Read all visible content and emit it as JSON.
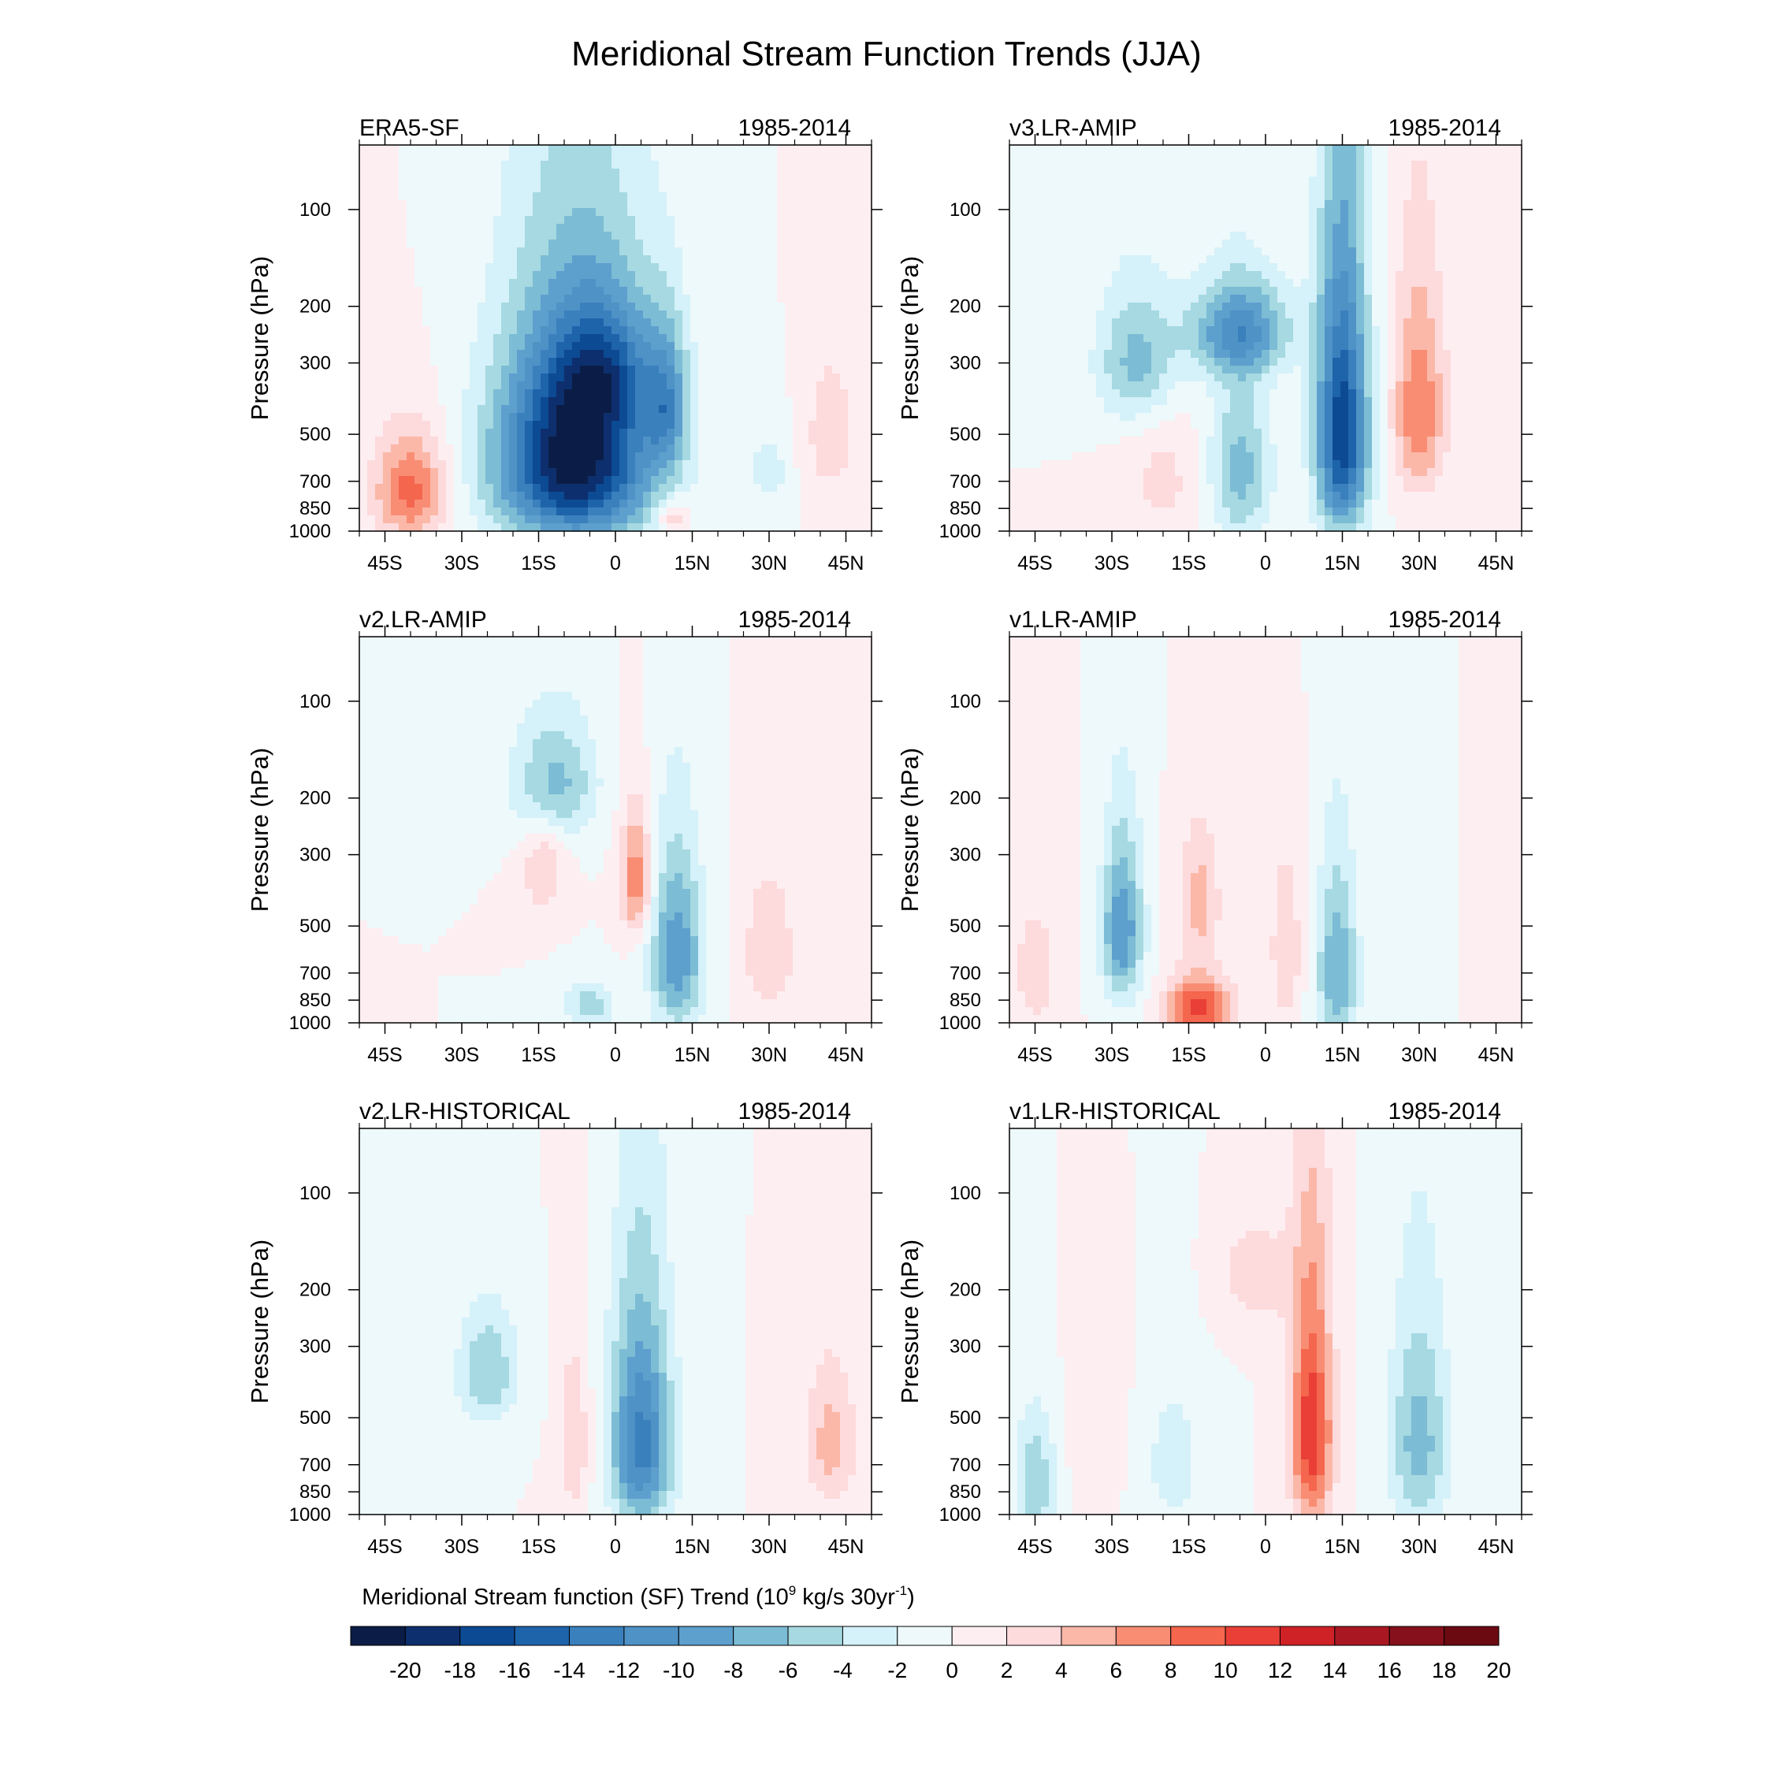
{
  "chart_data": {
    "type": "heatmap",
    "title": "Meridional Stream Function Trends (JJA)",
    "colorbar": {
      "title": "Meridional Stream function (SF) Trend (10",
      "title_exp1": "9",
      "title_mid": " kg/s 30yr",
      "title_exp2": "-1",
      "title_end": ")",
      "levels": [
        "-20",
        "-18",
        "-16",
        "-14",
        "-12",
        "-10",
        "-8",
        "-6",
        "-4",
        "-2",
        "0",
        "2",
        "4",
        "6",
        "8",
        "10",
        "12",
        "14",
        "16",
        "18",
        "20"
      ],
      "colors": [
        "#0b1d46",
        "#0d2f6e",
        "#0c4a93",
        "#1e64ab",
        "#3a80bd",
        "#4f92c6",
        "#5d9fcd",
        "#7cbcd5",
        "#a6d9e1",
        "#d5f1f9",
        "#eef9fb",
        "#fdeef1",
        "#fddadc",
        "#fbb8a8",
        "#f88d74",
        "#f4664e",
        "#e93f37",
        "#cf2227",
        "#a91822",
        "#86101b",
        "#6c0a12"
      ]
    },
    "x_ticks": [
      "45S",
      "30S",
      "15S",
      "0",
      "15N",
      "30N",
      "45N"
    ],
    "x_values": [
      -45,
      -30,
      -15,
      0,
      15,
      30,
      45
    ],
    "y_ticks": [
      "100",
      "200",
      "300",
      "500",
      "700",
      "850",
      "1000"
    ],
    "y_values": [
      100,
      200,
      300,
      500,
      700,
      850,
      1000
    ],
    "ylabel": "Pressure (hPa)",
    "panels": [
      {
        "name": "ERA5-SF",
        "period": "1985-2014",
        "features": [
          {
            "lat": -40,
            "p": 750,
            "wlat": 7,
            "wp": 280,
            "v": 9
          },
          {
            "lat": -8,
            "p": 600,
            "wlat": 15,
            "wp": 420,
            "v": -22
          },
          {
            "lat": -2,
            "p": 320,
            "wlat": 10,
            "wp": 150,
            "v": -8
          },
          {
            "lat": 10,
            "p": 420,
            "wlat": 4,
            "wp": 200,
            "v": -8
          },
          {
            "lat": 11,
            "p": 900,
            "wlat": 3,
            "wp": 120,
            "v": 5
          },
          {
            "lat": 30,
            "p": 650,
            "wlat": 4,
            "wp": 200,
            "v": -3
          },
          {
            "lat": 42,
            "p": 500,
            "wlat": 5,
            "wp": 250,
            "v": 3.5
          }
        ]
      },
      {
        "name": "v3.LR-AMIP",
        "period": "1985-2014",
        "features": [
          {
            "lat": -25,
            "p": 300,
            "wlat": 8,
            "wp": 150,
            "v": -7
          },
          {
            "lat": -5,
            "p": 240,
            "wlat": 10,
            "wp": 80,
            "v": -10
          },
          {
            "lat": -5,
            "p": 650,
            "wlat": 6,
            "wp": 380,
            "v": -7
          },
          {
            "lat": 15,
            "p": 500,
            "wlat": 5,
            "wp": 450,
            "v": -18
          },
          {
            "lat": 30,
            "p": 420,
            "wlat": 5,
            "wp": 300,
            "v": 8
          },
          {
            "lat": -20,
            "p": 700,
            "wlat": 8,
            "wp": 350,
            "v": 2.5
          }
        ]
      },
      {
        "name": "v2.LR-AMIP",
        "period": "1985-2014",
        "features": [
          {
            "lat": -12,
            "p": 180,
            "wlat": 8,
            "wp": 80,
            "v": -7
          },
          {
            "lat": 4,
            "p": 360,
            "wlat": 3,
            "wp": 150,
            "v": 8
          },
          {
            "lat": 12,
            "p": 620,
            "wlat": 5,
            "wp": 380,
            "v": -10
          },
          {
            "lat": 30,
            "p": 600,
            "wlat": 5,
            "wp": 300,
            "v": 4
          },
          {
            "lat": -5,
            "p": 880,
            "wlat": 5,
            "wp": 150,
            "v": -5
          },
          {
            "lat": -14,
            "p": 330,
            "wlat": 4,
            "wp": 120,
            "v": 4
          }
        ]
      },
      {
        "name": "v1.LR-AMIP",
        "period": "1985-2014",
        "features": [
          {
            "lat": -28,
            "p": 520,
            "wlat": 4,
            "wp": 300,
            "v": -10
          },
          {
            "lat": -13,
            "p": 900,
            "wlat": 6,
            "wp": 200,
            "v": 11
          },
          {
            "lat": -13,
            "p": 420,
            "wlat": 4,
            "wp": 200,
            "v": 5
          },
          {
            "lat": 4,
            "p": 600,
            "wlat": 3,
            "wp": 350,
            "v": 4
          },
          {
            "lat": 14,
            "p": 700,
            "wlat": 4,
            "wp": 450,
            "v": -8
          },
          {
            "lat": -45,
            "p": 700,
            "wlat": 5,
            "wp": 350,
            "v": 3
          }
        ]
      },
      {
        "name": "v2.LR-HISTORICAL",
        "period": "1985-2014",
        "features": [
          {
            "lat": -25,
            "p": 360,
            "wlat": 6,
            "wp": 150,
            "v": -6
          },
          {
            "lat": 5,
            "p": 600,
            "wlat": 6,
            "wp": 450,
            "v": -13
          },
          {
            "lat": -8,
            "p": 600,
            "wlat": 3,
            "wp": 350,
            "v": 4
          },
          {
            "lat": 42,
            "p": 600,
            "wlat": 5,
            "wp": 300,
            "v": 5
          }
        ]
      },
      {
        "name": "v1.LR-HISTORICAL",
        "period": "1985-2014",
        "features": [
          {
            "lat": 9,
            "p": 560,
            "wlat": 4,
            "wp": 450,
            "v": 12
          },
          {
            "lat": 30,
            "p": 600,
            "wlat": 6,
            "wp": 450,
            "v": -7
          },
          {
            "lat": -2,
            "p": 180,
            "wlat": 8,
            "wp": 80,
            "v": 3
          },
          {
            "lat": -45,
            "p": 800,
            "wlat": 4,
            "wp": 350,
            "v": -6
          },
          {
            "lat": -18,
            "p": 700,
            "wlat": 6,
            "wp": 400,
            "v": -3
          },
          {
            "lat": -33,
            "p": 500,
            "wlat": 5,
            "wp": 300,
            "v": 2
          }
        ]
      }
    ]
  }
}
